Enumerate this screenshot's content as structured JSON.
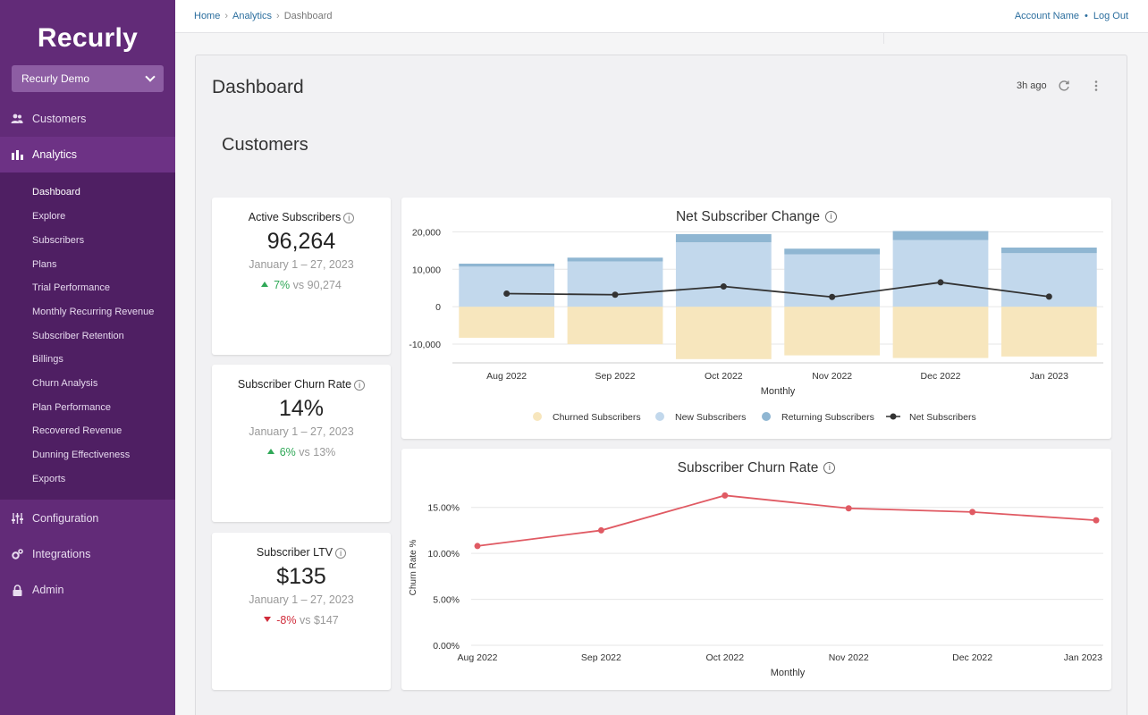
{
  "sidebar": {
    "logo": "Recurly",
    "site_selector": "Recurly Demo",
    "nav": [
      {
        "label": "Customers",
        "icon": "users-icon"
      },
      {
        "label": "Analytics",
        "icon": "bar-chart-icon"
      },
      {
        "label": "Configuration",
        "icon": "sliders-icon"
      },
      {
        "label": "Integrations",
        "icon": "gears-icon"
      },
      {
        "label": "Admin",
        "icon": "lock-icon"
      }
    ],
    "analytics_items": [
      "Dashboard",
      "Explore",
      "Subscribers",
      "Plans",
      "Trial Performance",
      "Monthly Recurring Revenue",
      "Subscriber Retention",
      "Billings",
      "Churn Analysis",
      "Plan Performance",
      "Recovered Revenue",
      "Dunning Effectiveness",
      "Exports"
    ],
    "active_item": "Dashboard"
  },
  "topbar": {
    "breadcrumbs": [
      "Home",
      "Analytics",
      "Dashboard"
    ],
    "account_name": "Account Name",
    "logout": "Log Out"
  },
  "dashboard": {
    "title": "Dashboard",
    "updated": "3h ago",
    "section": "Customers"
  },
  "kpis": [
    {
      "title": "Active Subscribers",
      "value": "96,264",
      "range": "January 1 – 27, 2023",
      "delta": "7%",
      "direction": "up",
      "compare": "vs 90,274"
    },
    {
      "title": "Subscriber Churn Rate",
      "value": "14%",
      "range": "January 1 – 27, 2023",
      "delta": "6%",
      "direction": "up",
      "compare": "vs 13%"
    },
    {
      "title": "Subscriber LTV",
      "value": "$135",
      "range": "January 1 – 27, 2023",
      "delta": "-8%",
      "direction": "down",
      "compare": "vs $147"
    }
  ],
  "colors": {
    "churned": "#f7e6bd",
    "new": "#c2d8ec",
    "returning": "#8fb6d2",
    "net": "#333333",
    "churn_line": "#e05a63",
    "up": "#2fa857",
    "down": "#d02b3a"
  },
  "chart_data": [
    {
      "type": "bar",
      "title": "Net Subscriber Change",
      "xlabel": "Monthly",
      "ylabel": "",
      "categories": [
        "Aug 2022",
        "Sep 2022",
        "Oct 2022",
        "Nov 2022",
        "Dec 2022",
        "Jan 2023"
      ],
      "series": [
        {
          "name": "Churned Subscribers",
          "values": [
            -8300,
            -10000,
            -14000,
            -13000,
            -13700,
            -13300
          ]
        },
        {
          "name": "New Subscribers",
          "values": [
            10700,
            12100,
            17200,
            14000,
            17800,
            14300
          ]
        },
        {
          "name": "Returning Subscribers",
          "values": [
            800,
            1000,
            2200,
            1500,
            2400,
            1500
          ]
        },
        {
          "name": "Net Subscribers",
          "values": [
            3500,
            3200,
            5400,
            2600,
            6500,
            2700
          ]
        }
      ],
      "yticks": [
        "20,000",
        "10,000",
        "0",
        "-10,000"
      ],
      "ylim": [
        -15000,
        22000
      ],
      "legend": "bottom"
    },
    {
      "type": "line",
      "title": "Subscriber Churn Rate",
      "xlabel": "Monthly",
      "ylabel": "Churn Rate %",
      "categories": [
        "Aug 2022",
        "Sep 2022",
        "Oct 2022",
        "Nov 2022",
        "Dec 2022",
        "Jan 2023"
      ],
      "values": [
        10.8,
        12.5,
        16.3,
        14.9,
        14.5,
        13.6
      ],
      "yticks": [
        "15.00%",
        "10.00%",
        "5.00%",
        "0.00%"
      ],
      "ylim": [
        0,
        17.5
      ]
    }
  ]
}
